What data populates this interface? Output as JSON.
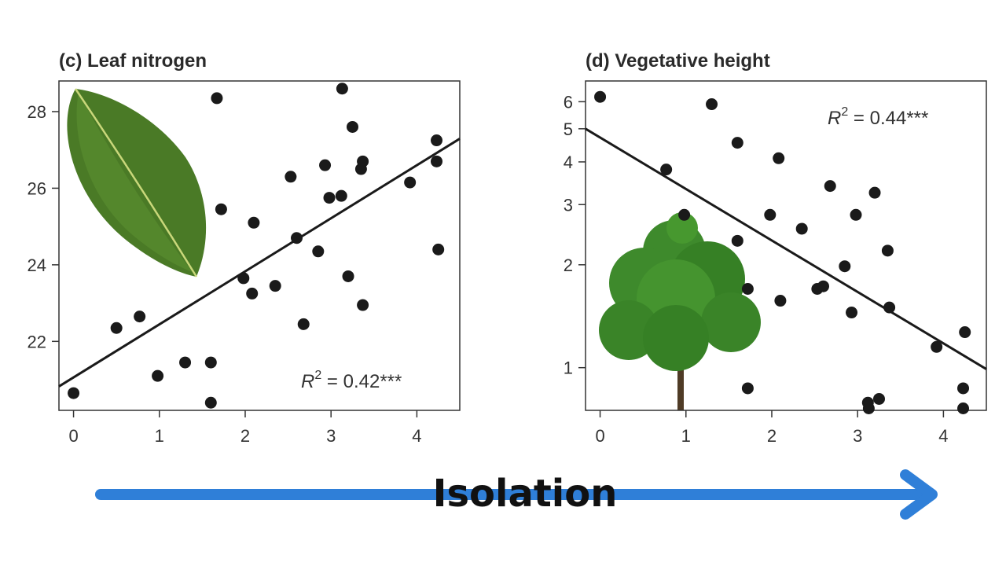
{
  "chart_data": [
    {
      "type": "scatter",
      "title": "(c) Leaf nitrogen",
      "xlabel": "",
      "ylabel": "",
      "xlim": [
        -0.17,
        4.5
      ],
      "ylim": [
        20.2,
        28.8
      ],
      "x_ticks": [
        "0",
        "1",
        "2",
        "3",
        "4"
      ],
      "y_ticks": [
        "22",
        "24",
        "26",
        "28"
      ],
      "fit_line": {
        "intercept": 21.06,
        "slope": 1.385
      },
      "annotation": {
        "base": "R",
        "sup": "2",
        "text": " = 0.42***"
      },
      "points": [
        [
          0.0,
          20.65
        ],
        [
          0.5,
          22.35
        ],
        [
          0.77,
          22.65
        ],
        [
          0.98,
          21.1
        ],
        [
          1.3,
          21.45
        ],
        [
          1.6,
          21.45
        ],
        [
          1.6,
          20.4
        ],
        [
          1.67,
          28.35
        ],
        [
          1.72,
          25.45
        ],
        [
          1.98,
          23.65
        ],
        [
          2.08,
          23.25
        ],
        [
          2.1,
          25.1
        ],
        [
          2.35,
          23.45
        ],
        [
          2.53,
          26.3
        ],
        [
          2.6,
          24.7
        ],
        [
          2.68,
          22.45
        ],
        [
          2.85,
          24.35
        ],
        [
          2.93,
          26.6
        ],
        [
          2.98,
          25.75
        ],
        [
          3.12,
          25.8
        ],
        [
          3.13,
          28.6
        ],
        [
          3.2,
          23.7
        ],
        [
          3.25,
          27.6
        ],
        [
          3.35,
          26.5
        ],
        [
          3.37,
          26.7
        ],
        [
          3.37,
          22.95
        ],
        [
          3.92,
          26.15
        ],
        [
          4.23,
          27.25
        ],
        [
          4.23,
          26.7
        ],
        [
          4.25,
          24.4
        ]
      ]
    },
    {
      "type": "scatter",
      "title": "(d) Vegetative height",
      "xlabel": "",
      "ylabel": "",
      "log_y": true,
      "xlim": [
        -0.17,
        4.5
      ],
      "ylim": [
        0.75,
        6.9
      ],
      "x_ticks": [
        "0",
        "1",
        "2",
        "3",
        "4"
      ],
      "y_ticks": [
        {
          "v": 1,
          "label": "1"
        },
        {
          "v": 2,
          "label": "2"
        },
        {
          "v": 3,
          "label": "3"
        },
        {
          "v": 4,
          "label": "4"
        },
        {
          "v": 5,
          "label": "5"
        },
        {
          "v": 6,
          "label": "6"
        }
      ],
      "fit_line": {
        "x0": -0.17,
        "y0": 5.0,
        "x1": 4.5,
        "y1": 0.99
      },
      "annotation": {
        "base": "R",
        "sup": "2",
        "text": " = 0.44***"
      },
      "points": [
        [
          0.0,
          6.2
        ],
        [
          0.77,
          3.8
        ],
        [
          0.98,
          2.8
        ],
        [
          1.3,
          5.9
        ],
        [
          1.6,
          4.55
        ],
        [
          1.6,
          2.35
        ],
        [
          1.72,
          1.7
        ],
        [
          1.72,
          0.87
        ],
        [
          1.98,
          2.8
        ],
        [
          2.08,
          4.1
        ],
        [
          2.1,
          1.57
        ],
        [
          2.35,
          2.55
        ],
        [
          2.53,
          1.7
        ],
        [
          2.6,
          1.73
        ],
        [
          2.68,
          3.4
        ],
        [
          2.85,
          1.98
        ],
        [
          2.93,
          1.45
        ],
        [
          2.98,
          2.8
        ],
        [
          3.12,
          0.79
        ],
        [
          3.13,
          0.76
        ],
        [
          3.2,
          3.25
        ],
        [
          3.25,
          0.81
        ],
        [
          3.35,
          2.2
        ],
        [
          3.37,
          1.5
        ],
        [
          3.92,
          1.15
        ],
        [
          4.23,
          0.87
        ],
        [
          4.23,
          0.76
        ],
        [
          4.25,
          1.27
        ]
      ]
    }
  ],
  "footer": {
    "label": "Isolation"
  },
  "colors": {
    "points": "#1a1a1a",
    "line": "#1a1a1a",
    "arrow": "#2f7fd8",
    "leaf": "#4a7a26",
    "tree": "#3e8a2c"
  },
  "icons": {
    "panel_c": "leaf-image",
    "panel_d": "tree-image",
    "footer": "arrow-right-icon"
  }
}
